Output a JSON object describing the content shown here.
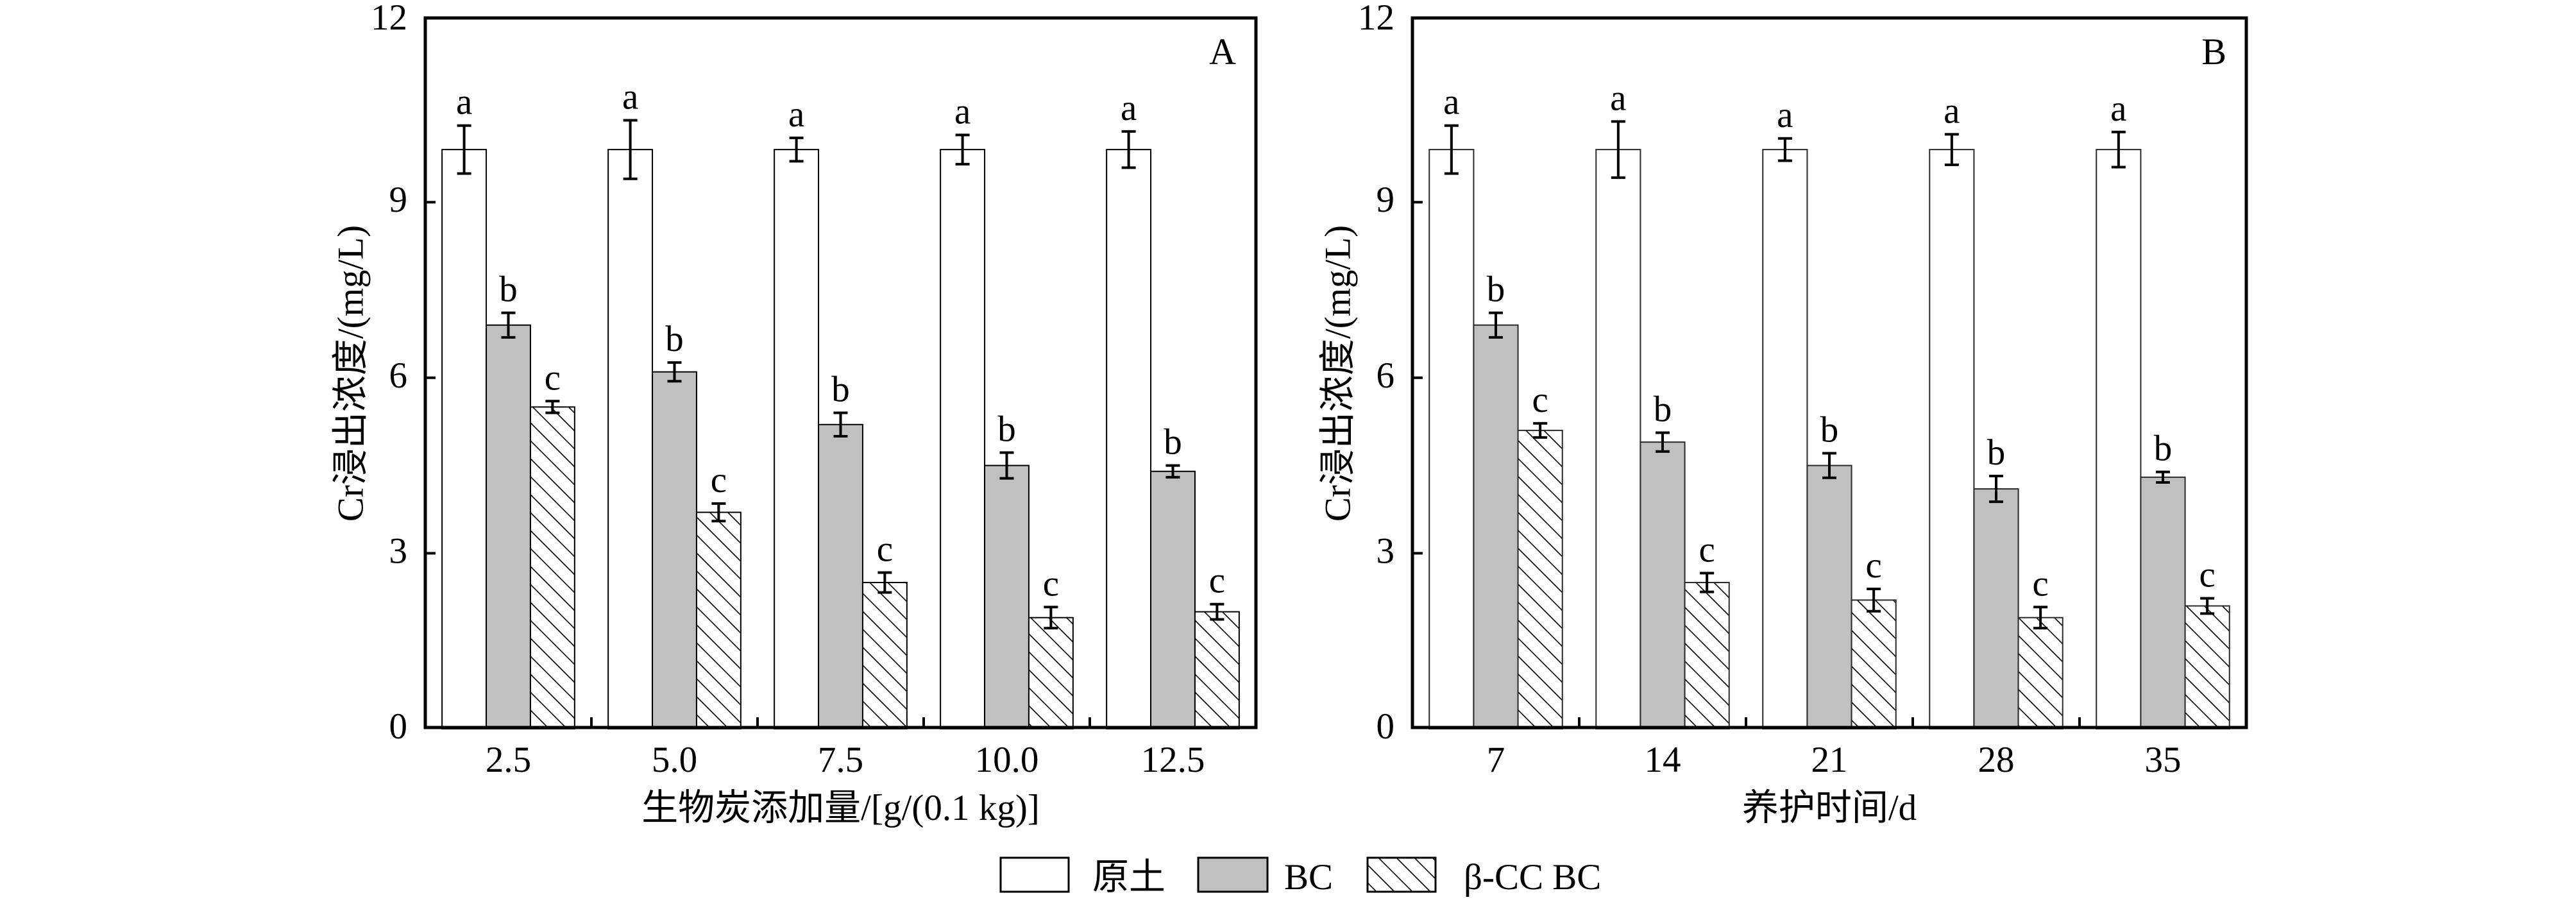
{
  "figure": {
    "legend": [
      {
        "label": "原土",
        "fill": "#ffffff",
        "pattern": "none"
      },
      {
        "label": "BC",
        "fill": "#c0c0c0",
        "pattern": "none"
      },
      {
        "label": "β-CC BC",
        "fill": "#ffffff",
        "pattern": "diagonal-hatch"
      }
    ],
    "legend_placement": "bottom-center"
  },
  "chart_data": [
    {
      "type": "bar",
      "panel_label": "A",
      "title": "",
      "xlabel": "生物炭添加量/[g/(0.1 kg)]",
      "ylabel": "Cr浸出浓度/(mg/L)",
      "ylim": [
        0,
        12
      ],
      "y_ticks": [
        0,
        3,
        6,
        9,
        12
      ],
      "y_tick_labels": [
        "0",
        "3",
        "6",
        "9",
        "12"
      ],
      "grid": false,
      "categories": [
        "2.5",
        "5.0",
        "7.5",
        "10.0",
        "12.5"
      ],
      "series": [
        {
          "name": "原土",
          "color": "#ffffff",
          "pattern": "none",
          "values": [
            9.9,
            9.9,
            9.9,
            9.9,
            9.9
          ],
          "errors": [
            0.41,
            0.5,
            0.2,
            0.25,
            0.31
          ],
          "letters": [
            "a",
            "a",
            "a",
            "a",
            "a"
          ]
        },
        {
          "name": "BC",
          "color": "#c0c0c0",
          "pattern": "none",
          "values": [
            6.9,
            6.1,
            5.2,
            4.5,
            4.4
          ],
          "errors": [
            0.21,
            0.16,
            0.2,
            0.22,
            0.1
          ],
          "letters": [
            "b",
            "b",
            "b",
            "b",
            "b"
          ]
        },
        {
          "name": "β-CC BC",
          "color": "#ffffff",
          "pattern": "diagonal-hatch",
          "values": [
            5.5,
            3.7,
            2.5,
            1.9,
            2.0
          ],
          "errors": [
            0.1,
            0.15,
            0.17,
            0.18,
            0.13
          ],
          "letters": [
            "c",
            "c",
            "c",
            "c",
            "c"
          ]
        }
      ]
    },
    {
      "type": "bar",
      "panel_label": "B",
      "title": "",
      "xlabel": "养护时间/d",
      "ylabel": "Cr浸出浓度/(mg/L)",
      "ylim": [
        0,
        12
      ],
      "y_ticks": [
        0,
        3,
        6,
        9,
        12
      ],
      "y_tick_labels": [
        "0",
        "3",
        "6",
        "9",
        "12"
      ],
      "grid": false,
      "categories": [
        "7",
        "14",
        "21",
        "28",
        "35"
      ],
      "series": [
        {
          "name": "原土",
          "color": "#ffffff",
          "pattern": "none",
          "values": [
            9.9,
            9.9,
            9.9,
            9.9,
            9.9
          ],
          "errors": [
            0.41,
            0.48,
            0.19,
            0.26,
            0.3
          ],
          "letters": [
            "a",
            "a",
            "a",
            "a",
            "a"
          ]
        },
        {
          "name": "BC",
          "color": "#c0c0c0",
          "pattern": "none",
          "values": [
            6.9,
            4.9,
            4.5,
            4.1,
            4.3
          ],
          "errors": [
            0.21,
            0.16,
            0.21,
            0.22,
            0.09
          ],
          "letters": [
            "b",
            "b",
            "b",
            "b",
            "b"
          ]
        },
        {
          "name": "β-CC BC",
          "color": "#ffffff",
          "pattern": "diagonal-hatch",
          "values": [
            5.1,
            2.5,
            2.2,
            1.9,
            2.1
          ],
          "errors": [
            0.12,
            0.16,
            0.19,
            0.18,
            0.13
          ],
          "letters": [
            "c",
            "c",
            "c",
            "c",
            "c"
          ]
        }
      ]
    }
  ]
}
